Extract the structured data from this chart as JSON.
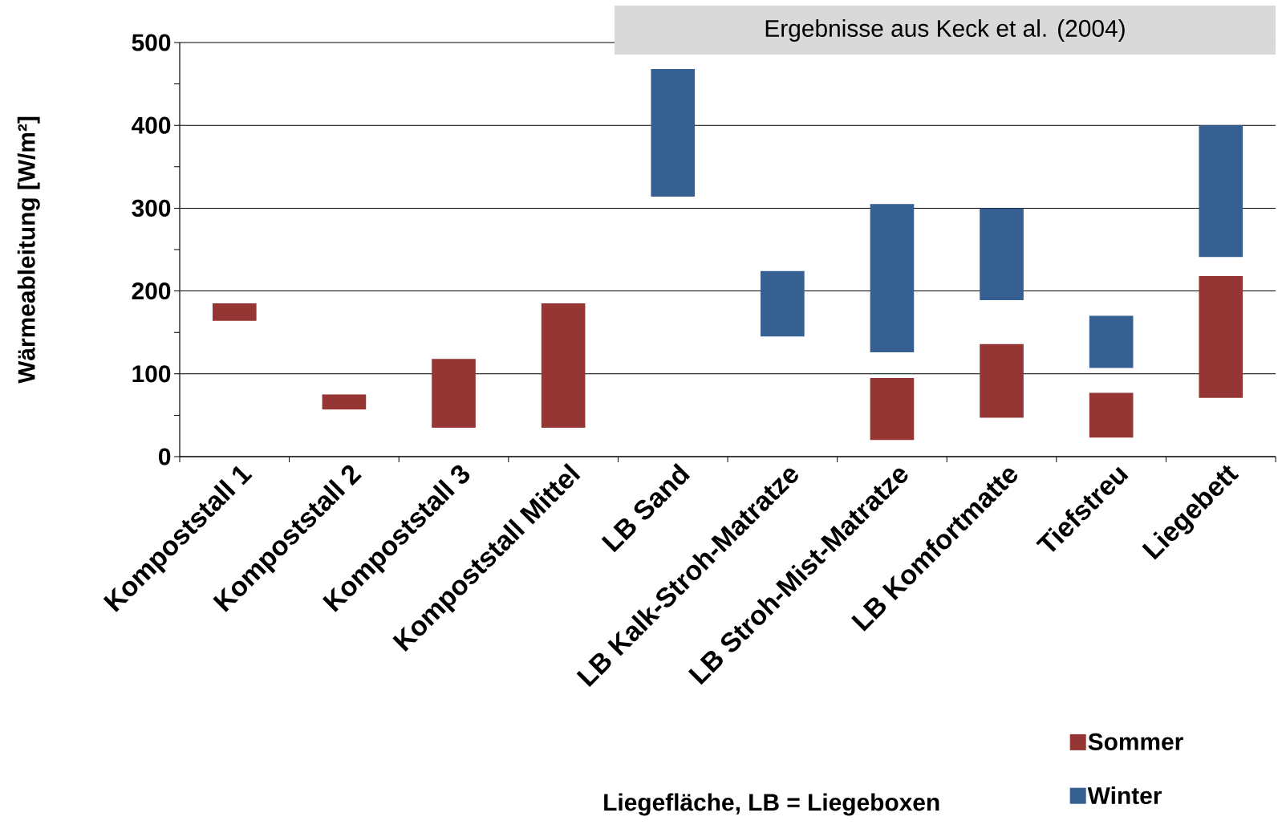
{
  "chart_data": {
    "type": "bar",
    "annotations": [
      "Ergebnisse aus Keck et al. (2004)"
    ],
    "xlabel": "Liegefläche, LB = Liegeboxen",
    "ylabel": "Wärmeableitung [W/m²]",
    "categories": [
      "Kompoststall 1",
      "Kompoststall 2",
      "Kompoststall 3",
      "Kompoststall Mittel",
      "LB Sand",
      "LB Kalk-Stroh-Matratze",
      "LB Stroh-Mist-Matratze",
      "LB Komfortmatte",
      "Tiefstreu",
      "Liegebett"
    ],
    "series": [
      {
        "name": "Sommer",
        "color": "#963634",
        "base": [
          164,
          57,
          35,
          35,
          null,
          null,
          20,
          47,
          23,
          71
        ],
        "values": [
          21,
          18,
          83,
          150,
          null,
          null,
          75,
          89,
          54,
          147
        ]
      },
      {
        "name": "Winter",
        "color": "#366092",
        "base": [
          null,
          null,
          null,
          null,
          314,
          145,
          126,
          189,
          107,
          241
        ],
        "values": [
          null,
          null,
          null,
          null,
          154,
          79,
          179,
          111,
          63,
          159
        ]
      }
    ],
    "ylim": [
      0,
      500
    ],
    "yticks": [
      0,
      100,
      200,
      300,
      400,
      500
    ],
    "grid": "y",
    "legend": "bottom right"
  }
}
